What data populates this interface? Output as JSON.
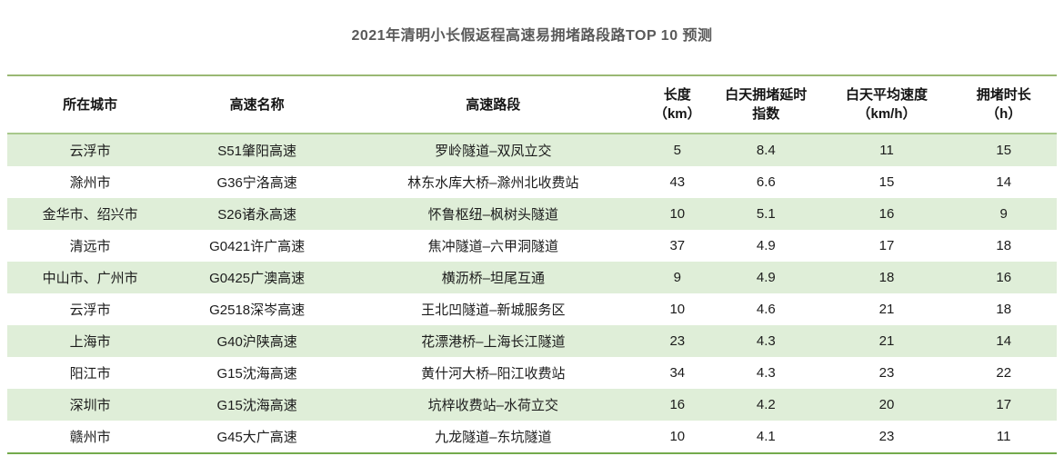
{
  "page": {
    "title": "2021年清明小长假返程高速易拥堵路段路TOP 10 预测"
  },
  "chart_data": {
    "type": "table",
    "title": "2021年清明小长假返程高速易拥堵路段路TOP 10 预测",
    "columns": [
      "所在城市",
      "高速名称",
      "高速路段",
      "长度\n（km）",
      "白天拥堵延时\n指数",
      "白天平均速度\n（km/h）",
      "拥堵时长\n（h）"
    ],
    "rows": [
      [
        "云浮市",
        "S51肇阳高速",
        "罗岭隧道–双凤立交",
        "5",
        "8.4",
        "11",
        "15"
      ],
      [
        "滁州市",
        "G36宁洛高速",
        "林东水库大桥–滁州北收费站",
        "43",
        "6.6",
        "15",
        "14"
      ],
      [
        "金华市、绍兴市",
        "S26诸永高速",
        "怀鲁枢纽–枫树头隧道",
        "10",
        "5.1",
        "16",
        "9"
      ],
      [
        "清远市",
        "G0421许广高速",
        "焦冲隧道–六甲洞隧道",
        "37",
        "4.9",
        "17",
        "18"
      ],
      [
        "中山市、广州市",
        "G0425广澳高速",
        "横沥桥–坦尾互通",
        "9",
        "4.9",
        "18",
        "16"
      ],
      [
        "云浮市",
        "G2518深岑高速",
        "王北凹隧道–新城服务区",
        "10",
        "4.6",
        "21",
        "18"
      ],
      [
        "上海市",
        "G40沪陕高速",
        "花漂港桥–上海长江隧道",
        "23",
        "4.3",
        "21",
        "14"
      ],
      [
        "阳江市",
        "G15沈海高速",
        "黄什河大桥–阳江收费站",
        "34",
        "4.3",
        "23",
        "22"
      ],
      [
        "深圳市",
        "G15沈海高速",
        "坑梓收费站–水荷立交",
        "16",
        "4.2",
        "20",
        "17"
      ],
      [
        "赣州市",
        "G45大广高速",
        "九龙隧道–东坑隧道",
        "10",
        "4.1",
        "23",
        "11"
      ]
    ]
  },
  "colors": {
    "title_text": "#595959",
    "stripe_row": "#dfeed8",
    "border_top": "#9ab873",
    "border_header": "#a8c88c",
    "border_bottom": "#74aa4c"
  }
}
